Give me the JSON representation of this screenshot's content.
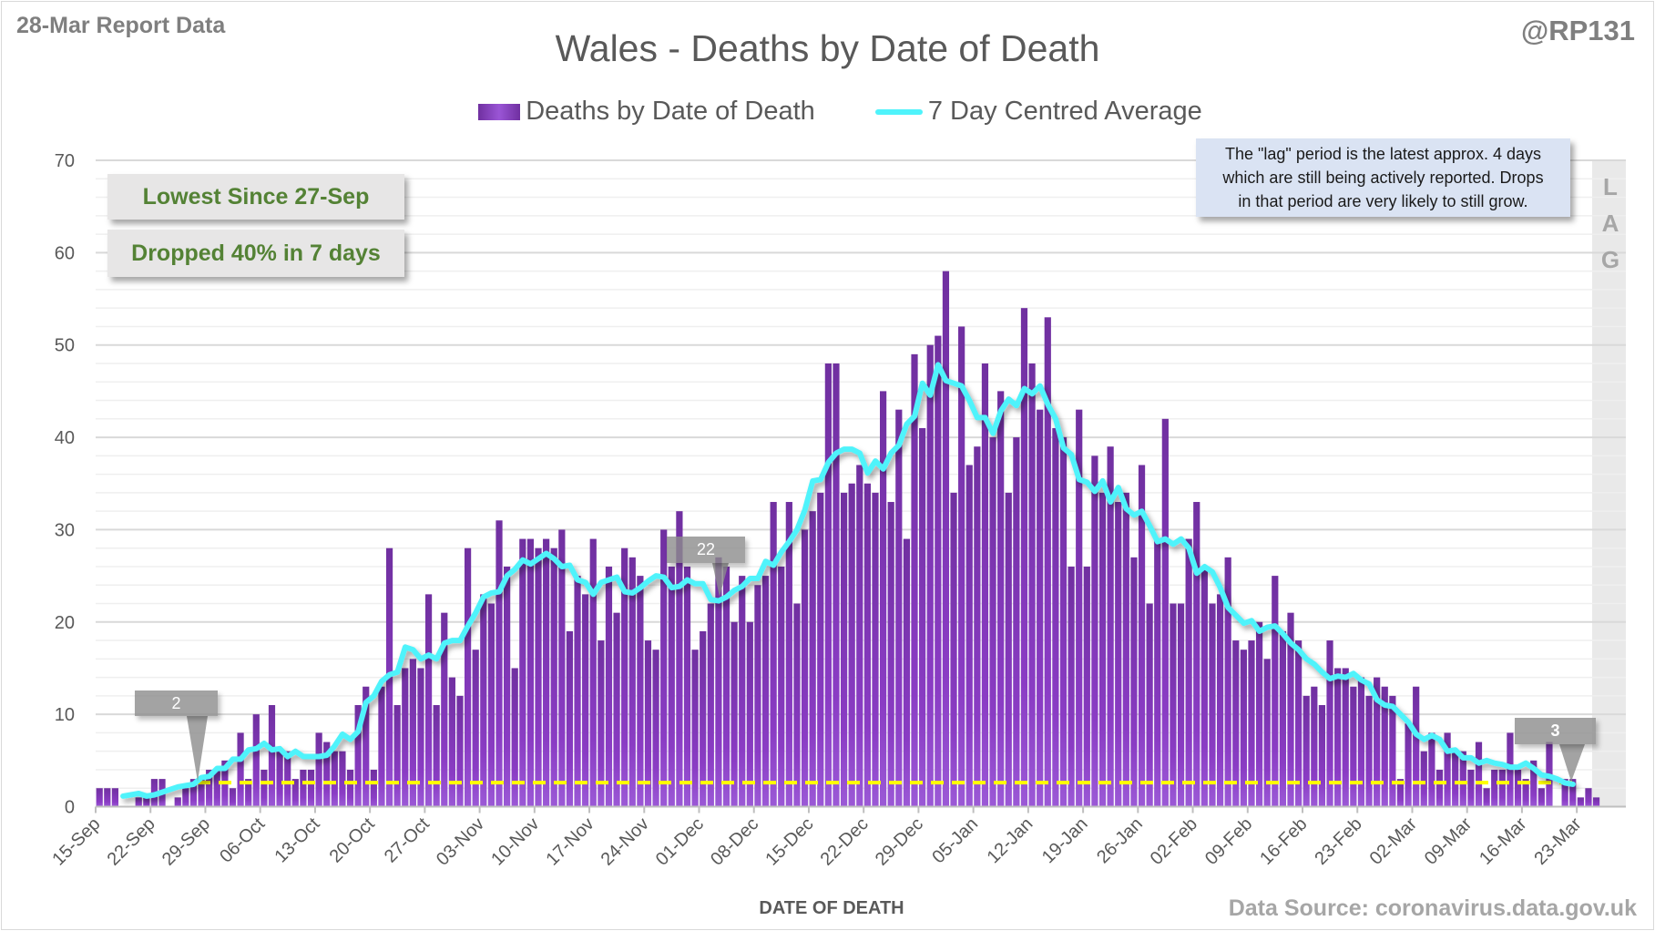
{
  "header": {
    "report_date": "28-Mar Report Data",
    "handle": "@RP131",
    "source": "Data Source: coronavirus.data.gov.uk"
  },
  "notes": {
    "lowest": "Lowest Since 27-Sep",
    "dropped": "Dropped 40% in 7 days",
    "lag_line1": "The \"lag\" period is the latest approx. 4 days",
    "lag_line2": "which are still being actively reported.  Drops",
    "lag_line3": "in that period are very likely to still grow.",
    "lag_letters": [
      "L",
      "A",
      "G"
    ]
  },
  "callouts": [
    "2",
    "22",
    "3"
  ],
  "colors": {
    "bar_top": "#7030a0",
    "bar_bottom": "#9b59d6",
    "average_line": "#4ff3fb",
    "reference_line": "#ffff00",
    "callout_text": "#548235"
  },
  "chart_data": {
    "type": "bar",
    "title": "Wales - Deaths by Date of Death",
    "xlabel": "DATE OF DEATH",
    "ylabel": "",
    "ylim": [
      0,
      70
    ],
    "yticks": [
      0,
      10,
      20,
      30,
      40,
      50,
      60,
      70
    ],
    "minor_grid_step": 2,
    "grid": true,
    "legend_position": "top-center",
    "start_date": "15-Sep",
    "x_tick_labels": [
      "15-Sep",
      "22-Sep",
      "29-Sep",
      "06-Oct",
      "13-Oct",
      "20-Oct",
      "27-Oct",
      "03-Nov",
      "10-Nov",
      "17-Nov",
      "24-Nov",
      "01-Dec",
      "08-Dec",
      "15-Dec",
      "22-Dec",
      "29-Dec",
      "05-Jan",
      "12-Jan",
      "19-Jan",
      "26-Jan",
      "02-Feb",
      "09-Feb",
      "16-Feb",
      "23-Feb",
      "02-Mar",
      "09-Mar",
      "16-Mar",
      "23-Mar"
    ],
    "series": [
      {
        "name": "Deaths by Date of Death",
        "kind": "bar",
        "values": [
          2,
          2,
          2,
          0,
          0,
          1,
          1,
          3,
          3,
          0,
          1,
          2,
          3,
          3,
          4,
          4,
          5,
          2,
          8,
          3,
          10,
          4,
          11,
          6,
          6,
          3,
          4,
          4,
          8,
          7,
          6,
          6,
          4,
          11,
          13,
          4,
          13,
          28,
          11,
          15,
          16,
          15,
          23,
          11,
          21,
          14,
          12,
          28,
          17,
          23,
          22,
          31,
          26,
          15,
          29,
          29,
          28,
          29,
          28,
          30,
          19,
          25,
          23,
          29,
          18,
          26,
          21,
          28,
          27,
          25,
          18,
          17,
          30,
          26,
          32,
          26,
          17,
          19,
          22,
          27,
          26,
          20,
          25,
          20,
          24,
          25,
          33,
          26,
          33,
          22,
          30,
          32,
          34,
          48,
          48,
          34,
          35,
          37,
          35,
          34,
          45,
          33,
          43,
          29,
          49,
          41,
          50,
          51,
          58,
          34,
          52,
          37,
          39,
          48,
          40,
          45,
          34,
          40,
          54,
          48,
          43,
          53,
          41,
          40,
          26,
          43,
          26,
          38,
          34,
          39,
          33,
          34,
          27,
          37,
          22,
          29,
          42,
          22,
          22,
          29,
          33,
          26,
          22,
          23,
          27,
          18,
          17,
          18,
          20,
          16,
          25,
          19,
          21,
          18,
          12,
          13,
          11,
          18,
          15,
          15,
          13,
          14,
          12,
          14,
          13,
          12,
          3,
          9,
          13,
          6,
          8,
          4,
          8,
          6,
          6,
          4,
          7,
          2,
          4,
          4,
          8,
          4,
          3,
          5,
          2,
          7,
          0,
          3,
          3,
          1,
          2,
          1
        ]
      },
      {
        "name": "7 Day Centred Average",
        "kind": "line",
        "derived_from": "Deaths by Date of Death",
        "window": 7
      }
    ],
    "reference_line_value": 2.6,
    "lag_days": 4
  }
}
